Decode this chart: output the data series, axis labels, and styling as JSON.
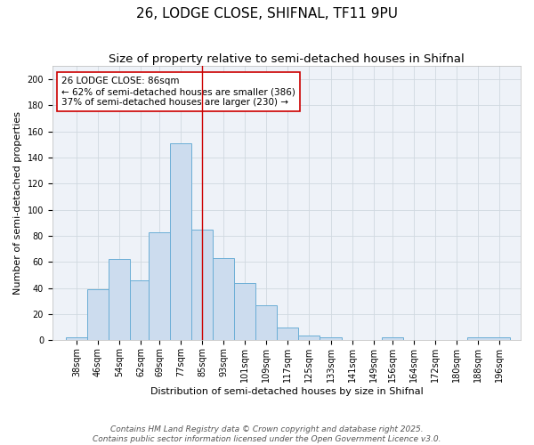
{
  "title1": "26, LODGE CLOSE, SHIFNAL, TF11 9PU",
  "title2": "Size of property relative to semi-detached houses in Shifnal",
  "xlabel": "Distribution of semi-detached houses by size in Shifnal",
  "ylabel": "Number of semi-detached properties",
  "bin_labels": [
    "38sqm",
    "46sqm",
    "54sqm",
    "62sqm",
    "69sqm",
    "77sqm",
    "85sqm",
    "93sqm",
    "101sqm",
    "109sqm",
    "117sqm",
    "125sqm",
    "133sqm",
    "141sqm",
    "149sqm",
    "156sqm",
    "164sqm",
    "172sqm",
    "180sqm",
    "188sqm",
    "196sqm"
  ],
  "hist_values": [
    2,
    39,
    62,
    46,
    83,
    151,
    85,
    63,
    44,
    27,
    10,
    4,
    2,
    0,
    0,
    2,
    0,
    0,
    0,
    2
  ],
  "bin_edges": [
    34,
    42,
    50,
    58,
    65,
    73,
    81,
    89,
    97,
    105,
    113,
    121,
    129,
    137,
    145,
    152,
    160,
    168,
    176,
    184,
    200
  ],
  "bar_color": "#ccdcee",
  "bar_edge_color": "#6baed6",
  "vline_x": 85,
  "vline_color": "#cc0000",
  "annotation_text": "26 LODGE CLOSE: 86sqm\n← 62% of semi-detached houses are smaller (386)\n37% of semi-detached houses are larger (230) →",
  "annotation_box_color": "#ffffff",
  "annotation_border_color": "#cc0000",
  "ylim": [
    0,
    210
  ],
  "yticks": [
    0,
    20,
    40,
    60,
    80,
    100,
    120,
    140,
    160,
    180,
    200
  ],
  "grid_color": "#d0d8e0",
  "bg_color": "#eef2f8",
  "footer": "Contains HM Land Registry data © Crown copyright and database right 2025.\nContains public sector information licensed under the Open Government Licence v3.0.",
  "title_fontsize": 11,
  "subtitle_fontsize": 9.5,
  "axis_label_fontsize": 8,
  "tick_fontsize": 7,
  "footer_fontsize": 6.5,
  "tick_positions": [
    38,
    46,
    54,
    62,
    69,
    77,
    85,
    93,
    101,
    109,
    117,
    125,
    133,
    141,
    149,
    156,
    164,
    172,
    180,
    188,
    196
  ]
}
